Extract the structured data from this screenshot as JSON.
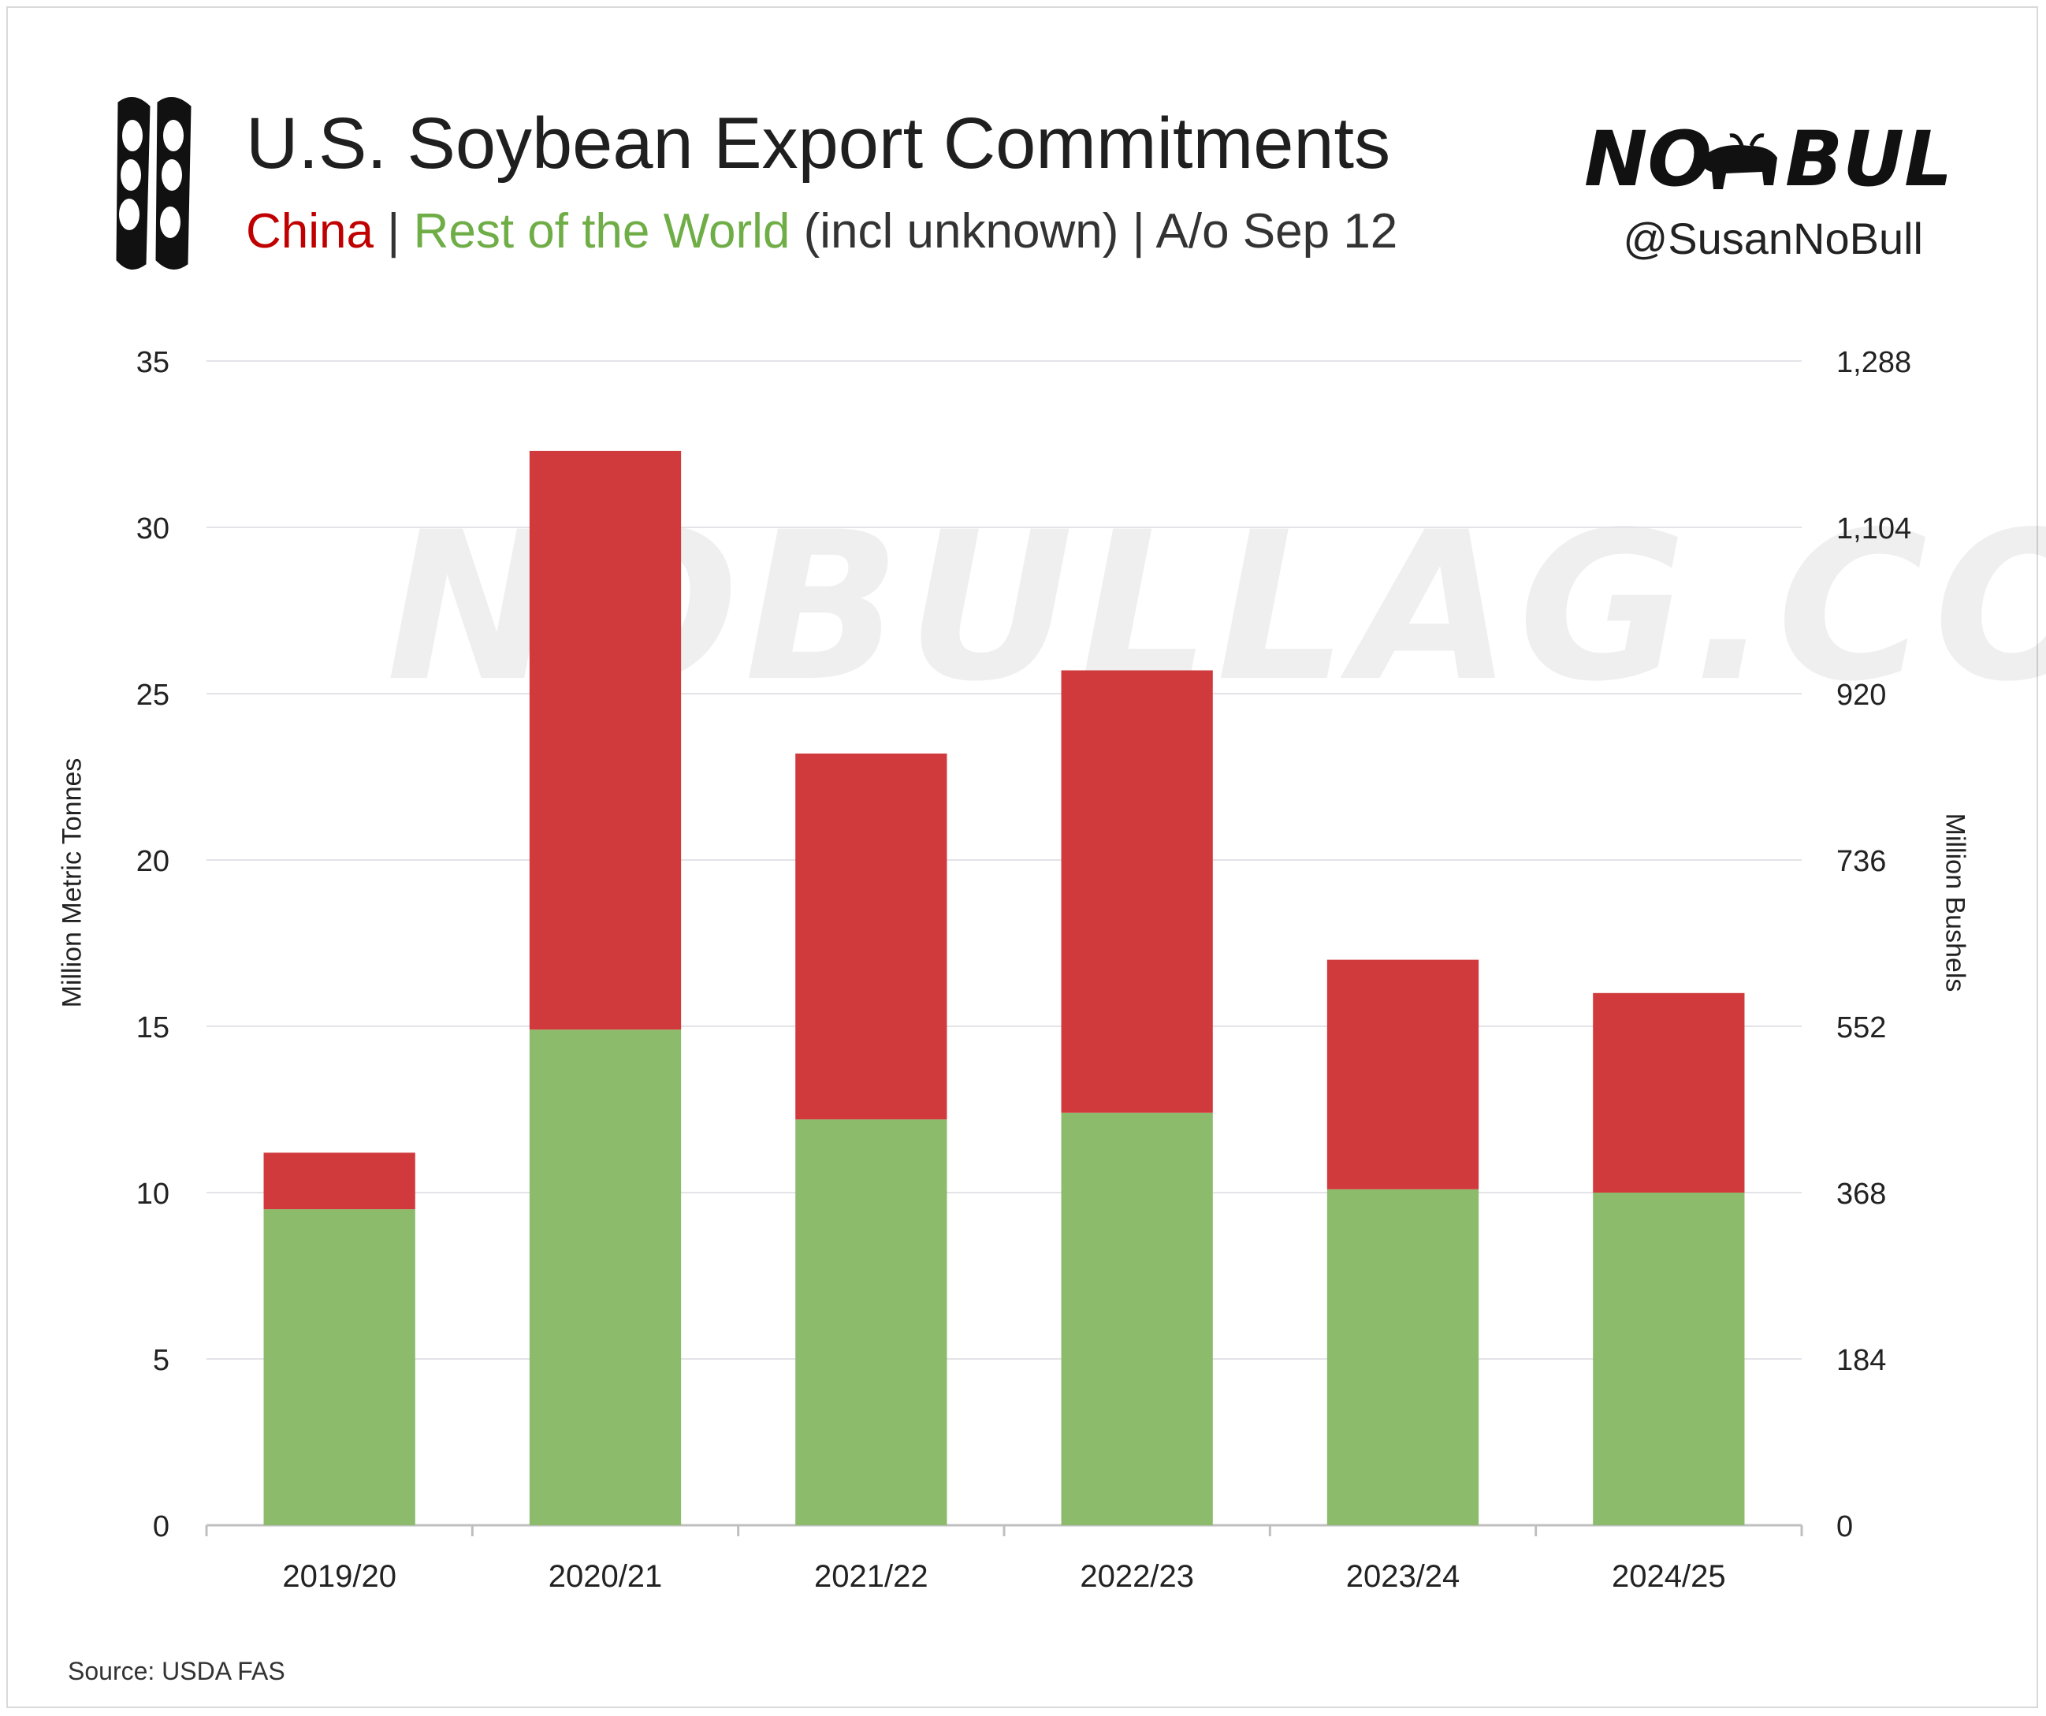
{
  "header": {
    "title": "U.S. Soybean Export Commitments",
    "subtitle_china": "China",
    "subtitle_sep1": " | ",
    "subtitle_row": "Rest of the World",
    "subtitle_rest": " (incl unknown) | A/o Sep 12",
    "brand_logo": "NO BULL",
    "handle": "@SusanNoBull",
    "pod_icon": "soybean-pods-icon",
    "bull_icon": "bull-icon"
  },
  "watermark": "NOBULLAG.COM",
  "footer": {
    "source": "Source: USDA FAS"
  },
  "colors": {
    "china": "#d13a3d",
    "rest_of_world": "#8cbb6c",
    "china_text": "#c00000",
    "row_text": "#6fad47"
  },
  "chart_data": {
    "type": "bar",
    "stacked": true,
    "categories": [
      "2019/20",
      "2020/21",
      "2021/22",
      "2022/23",
      "2023/24",
      "2024/25"
    ],
    "series": [
      {
        "name": "Rest of the World",
        "values": [
          9.5,
          14.9,
          12.2,
          12.4,
          10.1,
          10.0
        ]
      },
      {
        "name": "China",
        "values": [
          1.7,
          17.4,
          11.0,
          13.3,
          6.9,
          6.0
        ]
      }
    ],
    "ylabel": "Million Metric Tonnes",
    "ylabel_right": "Million Bushels",
    "ylim": [
      0,
      35
    ],
    "yticks": [
      "0",
      "5",
      "10",
      "15",
      "20",
      "25",
      "30",
      "35"
    ],
    "yticks_right": [
      "0",
      "184",
      "368",
      "552",
      "736",
      "920",
      "1,104",
      "1,288"
    ],
    "grid": true,
    "legend": "subtitle"
  }
}
